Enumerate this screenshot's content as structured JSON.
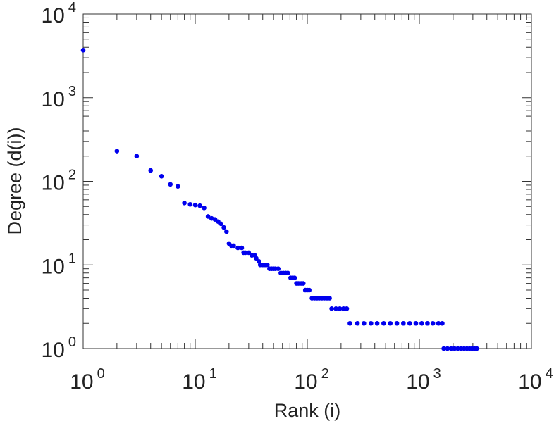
{
  "chart_data": {
    "type": "scatter",
    "title": "",
    "xlabel": "Rank (i)",
    "ylabel": "Degree (d(i))",
    "xscale": "log",
    "yscale": "log",
    "xlim": [
      1,
      10000
    ],
    "ylim": [
      1,
      10000
    ],
    "grid": false,
    "legend": "none",
    "marker_color": "#0000ee",
    "axis_color": "#333333",
    "x_ticks": [
      {
        "base": "10",
        "exp": "0"
      },
      {
        "base": "10",
        "exp": "1"
      },
      {
        "base": "10",
        "exp": "2"
      },
      {
        "base": "10",
        "exp": "3"
      },
      {
        "base": "10",
        "exp": "4"
      }
    ],
    "y_ticks": [
      {
        "base": "10",
        "exp": "0"
      },
      {
        "base": "10",
        "exp": "1"
      },
      {
        "base": "10",
        "exp": "2"
      },
      {
        "base": "10",
        "exp": "3"
      },
      {
        "base": "10",
        "exp": "4"
      }
    ],
    "points": [
      [
        1,
        3700
      ],
      [
        2,
        230
      ],
      [
        3,
        200
      ],
      [
        4,
        135
      ],
      [
        5,
        115
      ],
      [
        6,
        92
      ],
      [
        7,
        87
      ],
      [
        8,
        55
      ],
      [
        9,
        53
      ],
      [
        10,
        52
      ],
      [
        11,
        51
      ],
      [
        12,
        48
      ],
      [
        13,
        38
      ],
      [
        14,
        36
      ],
      [
        15,
        35
      ],
      [
        16,
        33
      ],
      [
        17,
        31
      ],
      [
        18,
        28
      ],
      [
        19,
        25
      ],
      [
        20,
        18
      ],
      [
        21,
        17
      ],
      [
        22,
        17
      ],
      [
        24,
        16
      ],
      [
        26,
        16
      ],
      [
        27,
        14
      ],
      [
        28,
        14
      ],
      [
        30,
        14
      ],
      [
        32,
        13
      ],
      [
        34,
        13
      ],
      [
        35,
        12
      ],
      [
        37,
        11
      ],
      [
        38,
        10
      ],
      [
        40,
        10
      ],
      [
        42,
        10
      ],
      [
        44,
        10
      ],
      [
        46,
        9
      ],
      [
        48,
        9
      ],
      [
        50,
        9
      ],
      [
        52,
        9
      ],
      [
        55,
        9
      ],
      [
        58,
        8
      ],
      [
        61,
        8
      ],
      [
        64,
        8
      ],
      [
        67,
        8
      ],
      [
        71,
        7
      ],
      [
        74,
        7
      ],
      [
        77,
        7
      ],
      [
        80,
        6
      ],
      [
        83,
        6
      ],
      [
        86,
        6
      ],
      [
        89,
        6
      ],
      [
        92,
        6
      ],
      [
        96,
        5
      ],
      [
        100,
        5
      ],
      [
        104,
        5
      ],
      [
        110,
        4
      ],
      [
        116,
        4
      ],
      [
        122,
        4
      ],
      [
        128,
        4
      ],
      [
        135,
        4
      ],
      [
        142,
        4
      ],
      [
        150,
        4
      ],
      [
        158,
        4
      ],
      [
        165,
        3
      ],
      [
        180,
        3
      ],
      [
        195,
        3
      ],
      [
        210,
        3
      ],
      [
        225,
        3
      ],
      [
        240,
        2
      ],
      [
        280,
        2
      ],
      [
        320,
        2
      ],
      [
        370,
        2
      ],
      [
        420,
        2
      ],
      [
        480,
        2
      ],
      [
        550,
        2
      ],
      [
        630,
        2
      ],
      [
        720,
        2
      ],
      [
        820,
        2
      ],
      [
        930,
        2
      ],
      [
        1050,
        2
      ],
      [
        1180,
        2
      ],
      [
        1320,
        2
      ],
      [
        1480,
        2
      ],
      [
        1600,
        2
      ],
      [
        1650,
        1
      ],
      [
        1780,
        1
      ],
      [
        1920,
        1
      ],
      [
        2060,
        1
      ],
      [
        2200,
        1
      ],
      [
        2350,
        1
      ],
      [
        2500,
        1
      ],
      [
        2650,
        1
      ],
      [
        2800,
        1
      ],
      [
        2950,
        1
      ],
      [
        3100,
        1
      ],
      [
        3250,
        1
      ]
    ]
  }
}
